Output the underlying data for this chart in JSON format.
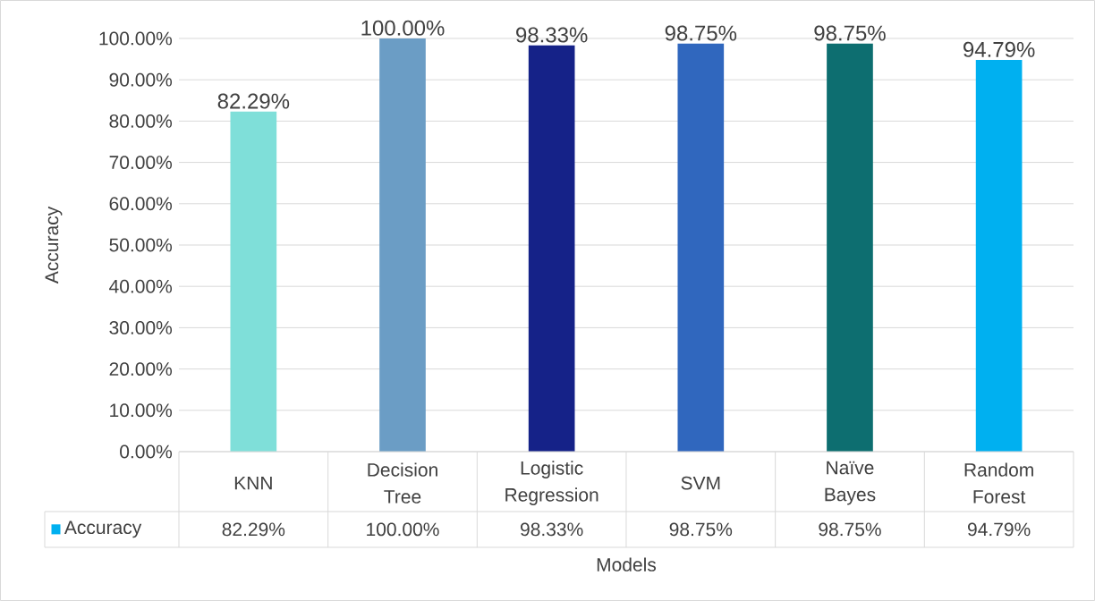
{
  "chart_data": {
    "type": "bar",
    "xlabel": "Models",
    "ylabel": "Accuracy",
    "categories": [
      "KNN",
      "Decision Tree",
      "Logistic Regression",
      "SVM",
      "Naïve Bayes",
      "Random Forest"
    ],
    "series": [
      {
        "name": "Accuracy",
        "color": "#00b0f0",
        "colors": [
          "#7fdfd9",
          "#6b9dc5",
          "#152288",
          "#3067be",
          "#0d6e70",
          "#00b0f0"
        ],
        "values": [
          82.29,
          100,
          98.33,
          98.75,
          98.75,
          94.79
        ],
        "value_labels": [
          "82.29%",
          "100.00%",
          "98.33%",
          "98.75%",
          "98.75%",
          "94.79%"
        ]
      }
    ],
    "ylim": [
      0,
      100
    ],
    "yticks": [
      {
        "value": 0,
        "label": "0.00%"
      },
      {
        "value": 10,
        "label": "10.00%"
      },
      {
        "value": 20,
        "label": "20.00%"
      },
      {
        "value": 30,
        "label": "30.00%"
      },
      {
        "value": 40,
        "label": "40.00%"
      },
      {
        "value": 50,
        "label": "50.00%"
      },
      {
        "value": 60,
        "label": "60.00%"
      },
      {
        "value": 70,
        "label": "70.00%"
      },
      {
        "value": 80,
        "label": "80.00%"
      },
      {
        "value": 90,
        "label": "90.00%"
      },
      {
        "value": 100,
        "label": "100.00%"
      }
    ],
    "grid": "y",
    "legend": "bottom"
  }
}
